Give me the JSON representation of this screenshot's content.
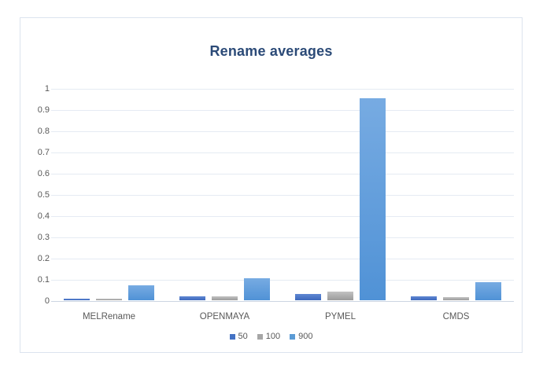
{
  "chart_data": {
    "type": "bar",
    "title": "Rename averages",
    "xlabel": "",
    "ylabel": "",
    "categories": [
      "MELRename",
      "OPENMAYA",
      "PYMEL",
      "CMDS"
    ],
    "series": [
      {
        "name": "50",
        "values": [
          0.008,
          0.017,
          0.028,
          0.017
        ]
      },
      {
        "name": "100",
        "values": [
          0.008,
          0.017,
          0.042,
          0.016
        ]
      },
      {
        "name": "900",
        "values": [
          0.07,
          0.105,
          0.95,
          0.085
        ]
      }
    ],
    "ylim": [
      0,
      1
    ],
    "yticks": [
      "1",
      "0.9",
      "0.8",
      "0.7",
      "0.6",
      "0.5",
      "0.4",
      "0.3",
      "0.2",
      "0.1",
      "0"
    ],
    "grid": true,
    "legend_position": "bottom"
  },
  "style": {
    "title_color": "#2b4a77",
    "axis_text_color": "#595959",
    "gridline_color": "#e5ebf3",
    "frame_border_color": "#dce3ee",
    "series_colors": [
      {
        "name": "50",
        "solid": "#4472c4",
        "grad_top": "#5f87d2",
        "grad_bottom": "#3e69bd"
      },
      {
        "name": "100",
        "solid": "#a6a6a6",
        "grad_top": "#c2c2c2",
        "grad_bottom": "#9b9b9b"
      },
      {
        "name": "900",
        "solid": "#5b9bd5",
        "grad_top": "#77abe2",
        "grad_bottom": "#5092d6"
      }
    ]
  }
}
